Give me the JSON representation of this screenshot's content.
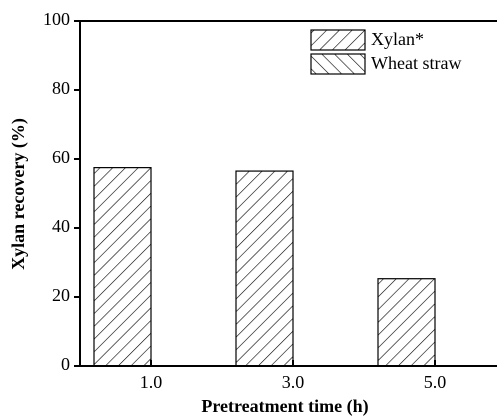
{
  "chart_data": {
    "type": "bar",
    "xlabel": "Pretreatment time (h)",
    "ylabel": "Xylan recovery (%)",
    "categories": [
      "1.0",
      "3.0",
      "5.0"
    ],
    "series": [
      {
        "name": "Xylan*",
        "color": "#000000",
        "hatch": "/",
        "values": [
          57.5,
          56.5,
          25.3
        ]
      },
      {
        "name": "Wheat straw",
        "color": "#000000",
        "hatch": "\\",
        "values": [
          null,
          null,
          null
        ]
      }
    ],
    "ylim": [
      0,
      100
    ],
    "yticks": [
      0,
      20,
      40,
      60,
      80,
      100
    ],
    "legend": "upper right"
  }
}
